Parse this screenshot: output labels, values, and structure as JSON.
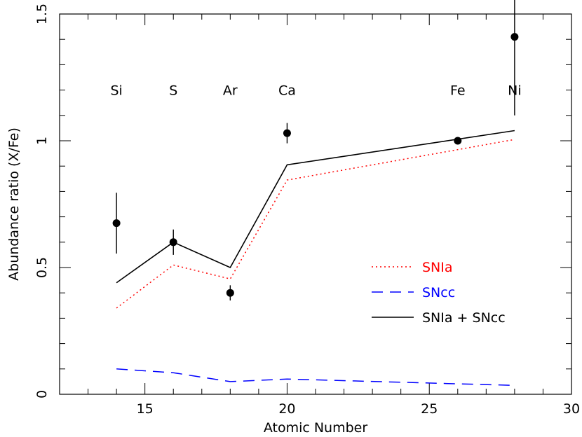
{
  "chart_data": {
    "type": "line",
    "xlabel": "Atomic Number",
    "ylabel": "Abundance ratio (X/Fe)",
    "xlim": [
      12,
      30
    ],
    "ylim": [
      0,
      1.5
    ],
    "xticks": [
      15,
      20,
      25,
      30
    ],
    "yticks": [
      0,
      0.5,
      1,
      1.5
    ],
    "xtick_labels": [
      "15",
      "20",
      "25",
      "30"
    ],
    "ytick_labels": [
      "0",
      "0.5",
      "1",
      "1.5"
    ],
    "x_minor_step": 1,
    "y_minor_step": 0.1,
    "element_labels": [
      {
        "text": "Si",
        "x": 14
      },
      {
        "text": "S",
        "x": 16
      },
      {
        "text": "Ar",
        "x": 18
      },
      {
        "text": "Ca",
        "x": 20
      },
      {
        "text": "Fe",
        "x": 26
      },
      {
        "text": "Ni",
        "x": 28
      }
    ],
    "element_label_y": 1.2,
    "observed": {
      "x": [
        14,
        16,
        18,
        20,
        26,
        28
      ],
      "y": [
        0.675,
        0.6,
        0.4,
        1.03,
        1.0,
        1.41
      ],
      "err_low": [
        0.12,
        0.05,
        0.03,
        0.04,
        0.0,
        0.31
      ],
      "err_high": [
        0.12,
        0.05,
        0.03,
        0.04,
        0.0,
        0.31
      ]
    },
    "series": [
      {
        "name": "SNIa",
        "color": "#ff0000",
        "style": "dotted",
        "x": [
          14,
          16,
          18,
          20,
          28
        ],
        "y": [
          0.34,
          0.51,
          0.455,
          0.845,
          1.005
        ]
      },
      {
        "name": "SNcc",
        "color": "#0000ff",
        "style": "dashed",
        "x": [
          14,
          16,
          18,
          20,
          28
        ],
        "y": [
          0.1,
          0.085,
          0.05,
          0.06,
          0.035
        ]
      },
      {
        "name": "SNIa + SNcc",
        "color": "#000000",
        "style": "solid",
        "x": [
          14,
          16,
          18,
          20,
          28
        ],
        "y": [
          0.44,
          0.6,
          0.5,
          0.905,
          1.04
        ]
      }
    ],
    "legend_placement": "lower-right",
    "grid": false
  }
}
